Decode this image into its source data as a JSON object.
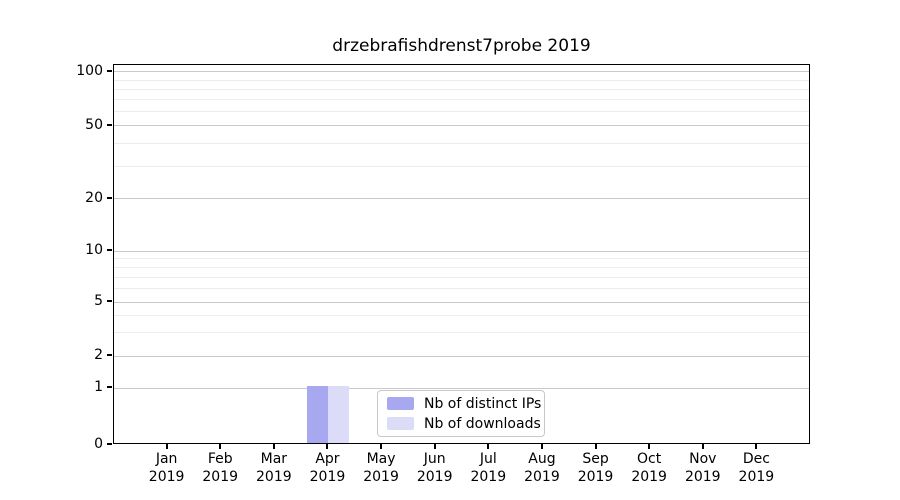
{
  "chart_data": {
    "type": "bar",
    "title": "drzebrafishdrenst7probe 2019",
    "categories": [
      "Jan 2019",
      "Feb 2019",
      "Mar 2019",
      "Apr 2019",
      "May 2019",
      "Jun 2019",
      "Jul 2019",
      "Aug 2019",
      "Sep 2019",
      "Oct 2019",
      "Nov 2019",
      "Dec 2019"
    ],
    "series": [
      {
        "name": "Nb of distinct IPs",
        "color": "#a8a8f0",
        "values": [
          0,
          0,
          0,
          1,
          0,
          0,
          0,
          0,
          0,
          0,
          0,
          0
        ]
      },
      {
        "name": "Nb of downloads",
        "color": "#dcdcf8",
        "values": [
          0,
          0,
          0,
          1,
          0,
          0,
          0,
          0,
          0,
          0,
          0,
          0
        ]
      }
    ],
    "xlabel": "",
    "ylabel": "",
    "yscale": "symlog",
    "yticks": [
      0,
      1,
      2,
      5,
      10,
      20,
      50,
      100
    ],
    "ylim": [
      0,
      110
    ],
    "grid": true,
    "legend_position": "inside-bottom-center",
    "colors": {
      "axis": "#000000",
      "major_grid": "#c9c9c9",
      "minor_grid": "#ededed",
      "background": "#ffffff"
    }
  }
}
